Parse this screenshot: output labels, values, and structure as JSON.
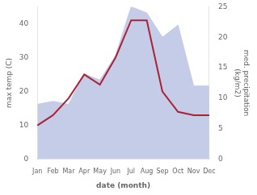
{
  "chart_data": {
    "type": "line",
    "categories": [
      "Jan",
      "Feb",
      "Mar",
      "Apr",
      "May",
      "Jun",
      "Jul",
      "Aug",
      "Sep",
      "Oct",
      "Nov",
      "Dec"
    ],
    "xlabel": "date (month)",
    "ylabel": "max temp (C)",
    "y2label": "med. precipitation\n(kg/m2)",
    "series": [
      {
        "type": "area",
        "color": "#c5cce8",
        "axis": "y2",
        "values": [
          9,
          9.5,
          9,
          14,
          13,
          17,
          25,
          24,
          20,
          22,
          12,
          12
        ]
      },
      {
        "type": "line",
        "color": "#aa2233",
        "values": [
          10,
          13,
          18,
          25,
          22,
          30,
          41,
          41,
          20,
          14,
          13,
          13
        ]
      }
    ],
    "ylim": [
      0,
      45
    ],
    "yticks": [
      0,
      10,
      20,
      30,
      40
    ],
    "y2lim": [
      0,
      25
    ],
    "y2ticks": [
      0,
      5,
      10,
      15,
      20,
      25
    ],
    "grid": false
  }
}
